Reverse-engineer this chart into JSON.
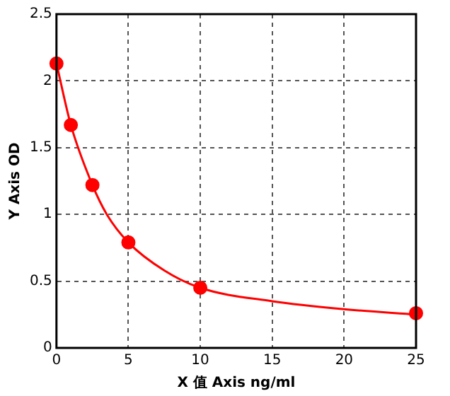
{
  "chart_data": {
    "type": "scatter",
    "xlabel": "X 值 Axis ng/ml",
    "ylabel": "Y Axis OD",
    "series": [
      {
        "type": "line",
        "color": "#ff0000",
        "marker": "none",
        "line_style": "solid",
        "x": [
          0,
          1,
          2.5,
          3.5,
          5,
          7.5,
          10,
          15,
          20,
          25
        ],
        "values": [
          2.13,
          1.67,
          1.22,
          1.0,
          0.79,
          0.58,
          0.45,
          0.35,
          0.29,
          0.25
        ]
      },
      {
        "color": "#ff0000",
        "marker": "circle",
        "x": [
          0,
          1,
          2.5,
          5,
          10,
          25
        ],
        "values": [
          2.13,
          1.67,
          1.22,
          0.79,
          0.45,
          0.26
        ]
      }
    ],
    "xlim": [
      0,
      25
    ],
    "xticks": [
      0,
      5,
      10,
      15,
      20,
      25
    ],
    "ylim": [
      0,
      2.5
    ],
    "yticks": [
      0,
      0.5,
      1,
      1.5,
      2,
      2.5
    ],
    "grid": true,
    "legend": false
  }
}
